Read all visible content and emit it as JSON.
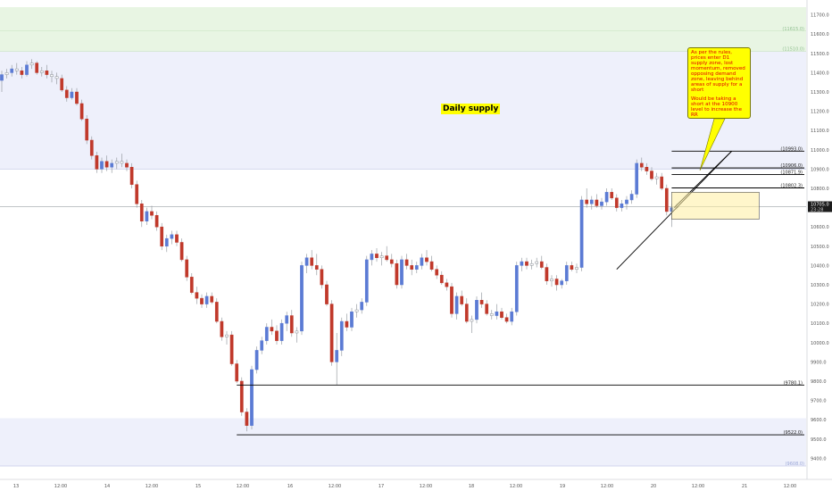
{
  "chart_data": {
    "type": "candlestick",
    "price_ticks": [
      "11700.0",
      "11600.0",
      "11500.0",
      "11400.0",
      "11300.0",
      "11200.0",
      "11100.0",
      "11000.0",
      "10900.0",
      "10800.0",
      "10700.0",
      "10600.0",
      "10500.0",
      "10400.0",
      "10300.0",
      "10200.0",
      "10100.0",
      "10000.0",
      "9900.0",
      "9800.0",
      "9700.0",
      "9600.0",
      "9500.0",
      "9400.0"
    ],
    "time_ticks": [
      "13",
      "12:00",
      "14",
      "12:00",
      "15",
      "12:00",
      "16",
      "12:00",
      "17",
      "12:00",
      "18",
      "12:00",
      "19",
      "12:00",
      "20",
      "12:00",
      "21",
      "12:00"
    ],
    "ylim": [
      9360,
      11740
    ],
    "colors": {
      "up": "#5b7bd4",
      "down": "#c0392b",
      "doji": "#9aa0a6",
      "green_zone": "#e8f5e3",
      "blue_zone": "#eef0fb"
    },
    "zones": [
      {
        "kind": "green",
        "label": "11615.0",
        "y1": 11800,
        "y2": 11615
      },
      {
        "kind": "green-band",
        "label": "11510.0",
        "y1": 11615,
        "y2": 11510
      },
      {
        "kind": "blue",
        "label": "",
        "y1": 11510,
        "y2": 10900
      },
      {
        "kind": "blue",
        "label": "9608.0",
        "y1": 9608,
        "y2": 9360
      }
    ],
    "levels": [
      {
        "label": "10993.0",
        "value": 10993,
        "x_from_index": 134
      },
      {
        "label": "10906.0",
        "value": 10906,
        "x_from_index": 134
      },
      {
        "label": "10871.9",
        "value": 10871.9,
        "x_from_index": 134
      },
      {
        "label": "10802.3",
        "value": 10802.3,
        "x_from_index": 134
      },
      {
        "label": "9780.1",
        "value": 9780.1,
        "x_from_index": 47
      },
      {
        "label": "9522.0",
        "value": 9522,
        "x_from_index": 47
      }
    ],
    "current_price": {
      "label": "10705.0",
      "sub": "23:28",
      "value": 10705
    },
    "annotation_title": "Daily supply",
    "candles": [
      [
        11360,
        11410,
        11300,
        11390
      ],
      [
        11390,
        11420,
        11370,
        11400
      ],
      [
        11400,
        11440,
        11380,
        11420
      ],
      [
        11420,
        11450,
        11390,
        11410
      ],
      [
        11410,
        11430,
        11370,
        11390
      ],
      [
        11390,
        11460,
        11380,
        11440
      ],
      [
        11440,
        11470,
        11420,
        11450
      ],
      [
        11450,
        11460,
        11390,
        11400
      ],
      [
        11400,
        11430,
        11380,
        11410
      ],
      [
        11410,
        11440,
        11370,
        11390
      ],
      [
        11390,
        11410,
        11350,
        11380
      ],
      [
        11380,
        11400,
        11340,
        11370
      ],
      [
        11370,
        11390,
        11300,
        11310
      ],
      [
        11310,
        11330,
        11250,
        11270
      ],
      [
        11270,
        11320,
        11260,
        11300
      ],
      [
        11300,
        11320,
        11230,
        11240
      ],
      [
        11240,
        11260,
        11150,
        11160
      ],
      [
        11160,
        11180,
        11030,
        11050
      ],
      [
        11050,
        11070,
        10950,
        10970
      ],
      [
        10970,
        10990,
        10880,
        10900
      ],
      [
        10900,
        10960,
        10880,
        10940
      ],
      [
        10940,
        10970,
        10890,
        10910
      ],
      [
        10910,
        10950,
        10880,
        10930
      ],
      [
        10930,
        10960,
        10900,
        10940
      ],
      [
        10940,
        10980,
        10910,
        10930
      ],
      [
        10930,
        10950,
        10890,
        10910
      ],
      [
        10910,
        10930,
        10800,
        10820
      ],
      [
        10820,
        10840,
        10700,
        10720
      ],
      [
        10720,
        10740,
        10600,
        10630
      ],
      [
        10630,
        10700,
        10610,
        10680
      ],
      [
        10680,
        10710,
        10640,
        10660
      ],
      [
        10660,
        10680,
        10580,
        10600
      ],
      [
        10600,
        10620,
        10480,
        10500
      ],
      [
        10500,
        10560,
        10470,
        10540
      ],
      [
        10540,
        10580,
        10510,
        10560
      ],
      [
        10560,
        10580,
        10500,
        10520
      ],
      [
        10520,
        10540,
        10420,
        10430
      ],
      [
        10430,
        10450,
        10320,
        10340
      ],
      [
        10340,
        10360,
        10250,
        10260
      ],
      [
        10260,
        10290,
        10200,
        10230
      ],
      [
        10230,
        10250,
        10180,
        10200
      ],
      [
        10200,
        10260,
        10180,
        10240
      ],
      [
        10240,
        10260,
        10200,
        10210
      ],
      [
        10210,
        10230,
        10100,
        10110
      ],
      [
        10110,
        10130,
        10010,
        10030
      ],
      [
        10030,
        10060,
        9990,
        10040
      ],
      [
        10040,
        10060,
        9880,
        9890
      ],
      [
        9890,
        9910,
        9790,
        9800
      ],
      [
        9800,
        9820,
        9620,
        9640
      ],
      [
        9640,
        9660,
        9540,
        9570
      ],
      [
        9570,
        9880,
        9550,
        9860
      ],
      [
        9860,
        9980,
        9840,
        9960
      ],
      [
        9960,
        10030,
        9940,
        10010
      ],
      [
        10010,
        10100,
        9990,
        10080
      ],
      [
        10080,
        10120,
        10040,
        10060
      ],
      [
        10060,
        10090,
        9990,
        10010
      ],
      [
        10010,
        10120,
        9990,
        10100
      ],
      [
        10100,
        10160,
        10060,
        10140
      ],
      [
        10140,
        10170,
        10030,
        10050
      ],
      [
        10050,
        10080,
        10000,
        10060
      ],
      [
        10060,
        10420,
        10040,
        10400
      ],
      [
        10400,
        10460,
        10360,
        10440
      ],
      [
        10440,
        10480,
        10380,
        10400
      ],
      [
        10400,
        10460,
        10350,
        10380
      ],
      [
        10380,
        10400,
        10280,
        10300
      ],
      [
        10300,
        10320,
        10190,
        10200
      ],
      [
        10200,
        10220,
        9880,
        9900
      ],
      [
        9900,
        10050,
        9780,
        9960
      ],
      [
        9960,
        10130,
        9930,
        10110
      ],
      [
        10110,
        10150,
        10060,
        10080
      ],
      [
        10080,
        10180,
        10060,
        10160
      ],
      [
        10160,
        10200,
        10130,
        10170
      ],
      [
        10170,
        10230,
        10150,
        10210
      ],
      [
        10210,
        10450,
        10190,
        10430
      ],
      [
        10430,
        10480,
        10400,
        10460
      ],
      [
        10460,
        10490,
        10420,
        10440
      ],
      [
        10440,
        10470,
        10400,
        10450
      ],
      [
        10450,
        10500,
        10420,
        10430
      ],
      [
        10430,
        10460,
        10390,
        10410
      ],
      [
        10410,
        10430,
        10280,
        10300
      ],
      [
        10300,
        10450,
        10280,
        10430
      ],
      [
        10430,
        10460,
        10380,
        10400
      ],
      [
        10400,
        10430,
        10350,
        10380
      ],
      [
        10380,
        10420,
        10360,
        10400
      ],
      [
        10400,
        10460,
        10380,
        10440
      ],
      [
        10440,
        10480,
        10400,
        10420
      ],
      [
        10420,
        10450,
        10370,
        10380
      ],
      [
        10380,
        10400,
        10330,
        10350
      ],
      [
        10350,
        10370,
        10300,
        10310
      ],
      [
        10310,
        10330,
        10270,
        10290
      ],
      [
        10290,
        10310,
        10130,
        10150
      ],
      [
        10150,
        10260,
        10120,
        10240
      ],
      [
        10240,
        10270,
        10190,
        10200
      ],
      [
        10200,
        10230,
        10100,
        10110
      ],
      [
        10110,
        10140,
        10050,
        10120
      ],
      [
        10120,
        10240,
        10100,
        10220
      ],
      [
        10220,
        10260,
        10180,
        10200
      ],
      [
        10200,
        10220,
        10140,
        10150
      ],
      [
        10150,
        10170,
        10120,
        10140
      ],
      [
        10140,
        10200,
        10120,
        10160
      ],
      [
        10160,
        10180,
        10120,
        10130
      ],
      [
        10130,
        10150,
        10100,
        10110
      ],
      [
        10110,
        10180,
        10090,
        10160
      ],
      [
        10160,
        10420,
        10140,
        10400
      ],
      [
        10400,
        10440,
        10370,
        10420
      ],
      [
        10420,
        10440,
        10380,
        10400
      ],
      [
        10400,
        10430,
        10380,
        10410
      ],
      [
        10410,
        10440,
        10390,
        10420
      ],
      [
        10420,
        10450,
        10380,
        10390
      ],
      [
        10390,
        10410,
        10300,
        10320
      ],
      [
        10320,
        10350,
        10290,
        10330
      ],
      [
        10330,
        10350,
        10270,
        10300
      ],
      [
        10300,
        10330,
        10280,
        10320
      ],
      [
        10320,
        10420,
        10300,
        10400
      ],
      [
        10400,
        10420,
        10370,
        10380
      ],
      [
        10380,
        10410,
        10360,
        10390
      ],
      [
        10390,
        10760,
        10370,
        10740
      ],
      [
        10740,
        10800,
        10700,
        10720
      ],
      [
        10720,
        10760,
        10690,
        10740
      ],
      [
        10740,
        10770,
        10700,
        10710
      ],
      [
        10710,
        10750,
        10690,
        10730
      ],
      [
        10730,
        10800,
        10710,
        10780
      ],
      [
        10780,
        10800,
        10740,
        10750
      ],
      [
        10750,
        10770,
        10680,
        10700
      ],
      [
        10700,
        10740,
        10680,
        10720
      ],
      [
        10720,
        10760,
        10690,
        10740
      ],
      [
        10740,
        10790,
        10720,
        10770
      ],
      [
        10770,
        10950,
        10750,
        10930
      ],
      [
        10930,
        10960,
        10890,
        10910
      ],
      [
        10910,
        10930,
        10870,
        10890
      ],
      [
        10890,
        10910,
        10840,
        10850
      ],
      [
        10850,
        10880,
        10820,
        10860
      ],
      [
        10860,
        10880,
        10790,
        10800
      ],
      [
        10800,
        10820,
        10660,
        10680
      ],
      [
        10680,
        10720,
        10600,
        10700
      ],
      [
        10700,
        10720,
        10690,
        10705
      ]
    ]
  }
}
